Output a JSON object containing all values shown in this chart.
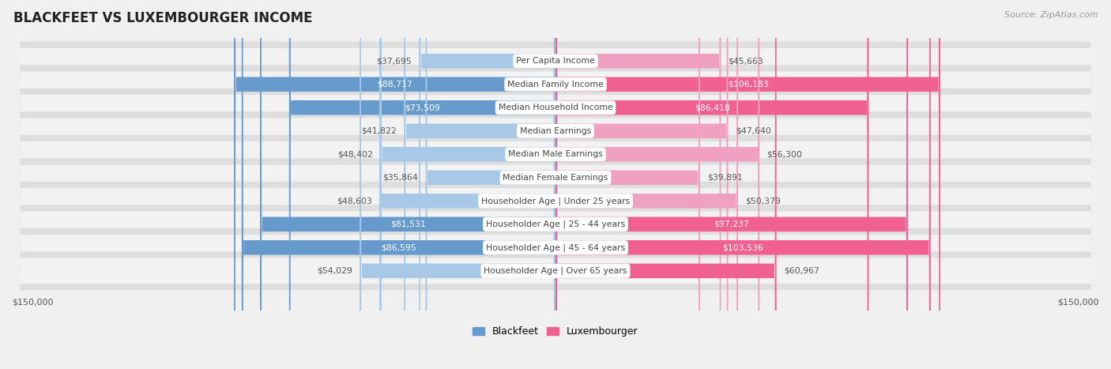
{
  "title": "BLACKFEET VS LUXEMBOURGER INCOME",
  "source": "Source: ZipAtlas.com",
  "categories": [
    "Per Capita Income",
    "Median Family Income",
    "Median Household Income",
    "Median Earnings",
    "Median Male Earnings",
    "Median Female Earnings",
    "Householder Age | Under 25 years",
    "Householder Age | 25 - 44 years",
    "Householder Age | 45 - 64 years",
    "Householder Age | Over 65 years"
  ],
  "blackfeet_values": [
    37695,
    88717,
    73509,
    41822,
    48402,
    35864,
    48603,
    81531,
    86595,
    54029
  ],
  "luxembourger_values": [
    45663,
    106183,
    86418,
    47640,
    56300,
    39891,
    50379,
    97237,
    103536,
    60967
  ],
  "max_value": 150000,
  "blackfeet_color_strong": "#6699CC",
  "blackfeet_color_light": "#A8C8E8",
  "luxembourger_color_strong": "#F06090",
  "luxembourger_color_light": "#F0A0C0",
  "bg_color": "#F0F0F0",
  "row_bg": "#E8E8E8",
  "row_bg_light": "#EBEBEB",
  "label_text_color": "#444444",
  "value_text_dark": "#555555",
  "strong_threshold": 60000,
  "white_text_threshold": 60000
}
